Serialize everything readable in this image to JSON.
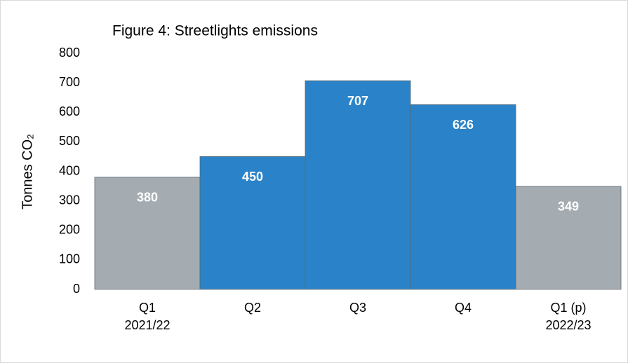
{
  "chart_data": {
    "type": "bar",
    "title": "Figure 4: Streetlights emissions",
    "y_label": "Tonnes CO₂",
    "categories": [
      [
        "Q1",
        "2021/22"
      ],
      [
        "Q2"
      ],
      [
        "Q3"
      ],
      [
        "Q4"
      ],
      [
        "Q1 (p)",
        "2022/23"
      ]
    ],
    "values": [
      380,
      450,
      707,
      626,
      349
    ],
    "colors": [
      "#a5acb1",
      "#2a83c8",
      "#2a83c8",
      "#2a83c8",
      "#a5acb1"
    ],
    "ylim": [
      0,
      800
    ],
    "yticks": [
      0,
      100,
      200,
      300,
      400,
      500,
      600,
      700,
      800
    ],
    "grid": false
  }
}
